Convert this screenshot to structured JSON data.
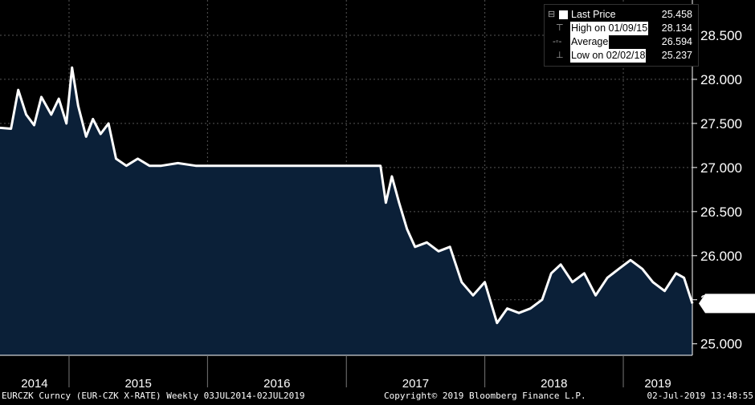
{
  "chart_data": {
    "type": "area",
    "title": "",
    "xlabel": "",
    "ylabel": "",
    "x_tick_labels": [
      "2014",
      "2015",
      "2016",
      "2017",
      "2018",
      "2019"
    ],
    "y_tick_labels": [
      "25.000",
      "25.500",
      "26.000",
      "26.500",
      "27.000",
      "27.500",
      "28.000",
      "28.500"
    ],
    "ylim": [
      24.87,
      28.9
    ],
    "xlim": [
      "2014-07-03",
      "2019-07-02"
    ],
    "last_price_tag": "25.458",
    "series": [
      {
        "x": [
          "2014-07-03",
          "2014-08-01",
          "2014-08-20",
          "2014-09-10",
          "2014-10-01",
          "2014-10-20",
          "2014-11-15",
          "2014-12-05",
          "2014-12-25",
          "2015-01-09",
          "2015-01-25",
          "2015-02-15",
          "2015-03-05",
          "2015-03-25",
          "2015-04-15",
          "2015-05-05",
          "2015-06-01",
          "2015-07-01",
          "2015-08-01",
          "2015-09-01",
          "2015-10-15",
          "2015-12-01",
          "2016-02-01",
          "2016-04-01",
          "2016-06-01",
          "2016-08-01",
          "2016-10-01",
          "2016-12-01",
          "2017-02-01",
          "2017-04-01",
          "2017-04-15",
          "2017-05-01",
          "2017-05-20",
          "2017-06-10",
          "2017-07-01",
          "2017-08-01",
          "2017-09-01",
          "2017-10-01",
          "2017-11-01",
          "2017-12-01",
          "2018-01-01",
          "2018-02-02",
          "2018-03-01",
          "2018-04-01",
          "2018-05-01",
          "2018-06-01",
          "2018-06-25",
          "2018-07-20",
          "2018-08-20",
          "2018-09-20",
          "2018-10-20",
          "2018-11-20",
          "2018-12-20",
          "2019-01-20",
          "2019-02-20",
          "2019-03-20",
          "2019-04-20",
          "2019-05-20",
          "2019-06-10",
          "2019-07-02"
        ],
        "values": [
          27.45,
          27.44,
          27.88,
          27.6,
          27.48,
          27.8,
          27.6,
          27.78,
          27.5,
          28.134,
          27.7,
          27.35,
          27.55,
          27.38,
          27.5,
          27.1,
          27.02,
          27.1,
          27.02,
          27.02,
          27.05,
          27.02,
          27.02,
          27.02,
          27.02,
          27.02,
          27.02,
          27.02,
          27.02,
          27.02,
          26.6,
          26.9,
          26.6,
          26.3,
          26.1,
          26.15,
          26.05,
          26.1,
          25.7,
          25.55,
          25.7,
          25.237,
          25.4,
          25.35,
          25.4,
          25.5,
          25.8,
          25.9,
          25.7,
          25.8,
          25.55,
          25.75,
          25.85,
          25.95,
          25.85,
          25.7,
          25.6,
          25.8,
          25.75,
          25.458
        ]
      }
    ],
    "colors": {
      "fill": "#0b2038",
      "line": "#ffffff",
      "background": "#000000",
      "grid": "#555555"
    },
    "legend": {
      "placement": "top-right",
      "entries": [
        {
          "label": "Last Price",
          "value": "25.458"
        },
        {
          "label": "High on 01/09/15",
          "value": "28.134"
        },
        {
          "label": "Average",
          "value": "26.594"
        },
        {
          "label": "Low on 02/02/18",
          "value": "25.237"
        }
      ]
    }
  },
  "footer": {
    "left": "EURCZK Curncy (EUR-CZK X-RATE)  Weekly 03JUL2014-02JUL2019",
    "center": "Copyright© 2019 Bloomberg Finance L.P.",
    "right": "02-Jul-2019 13:48:55"
  }
}
